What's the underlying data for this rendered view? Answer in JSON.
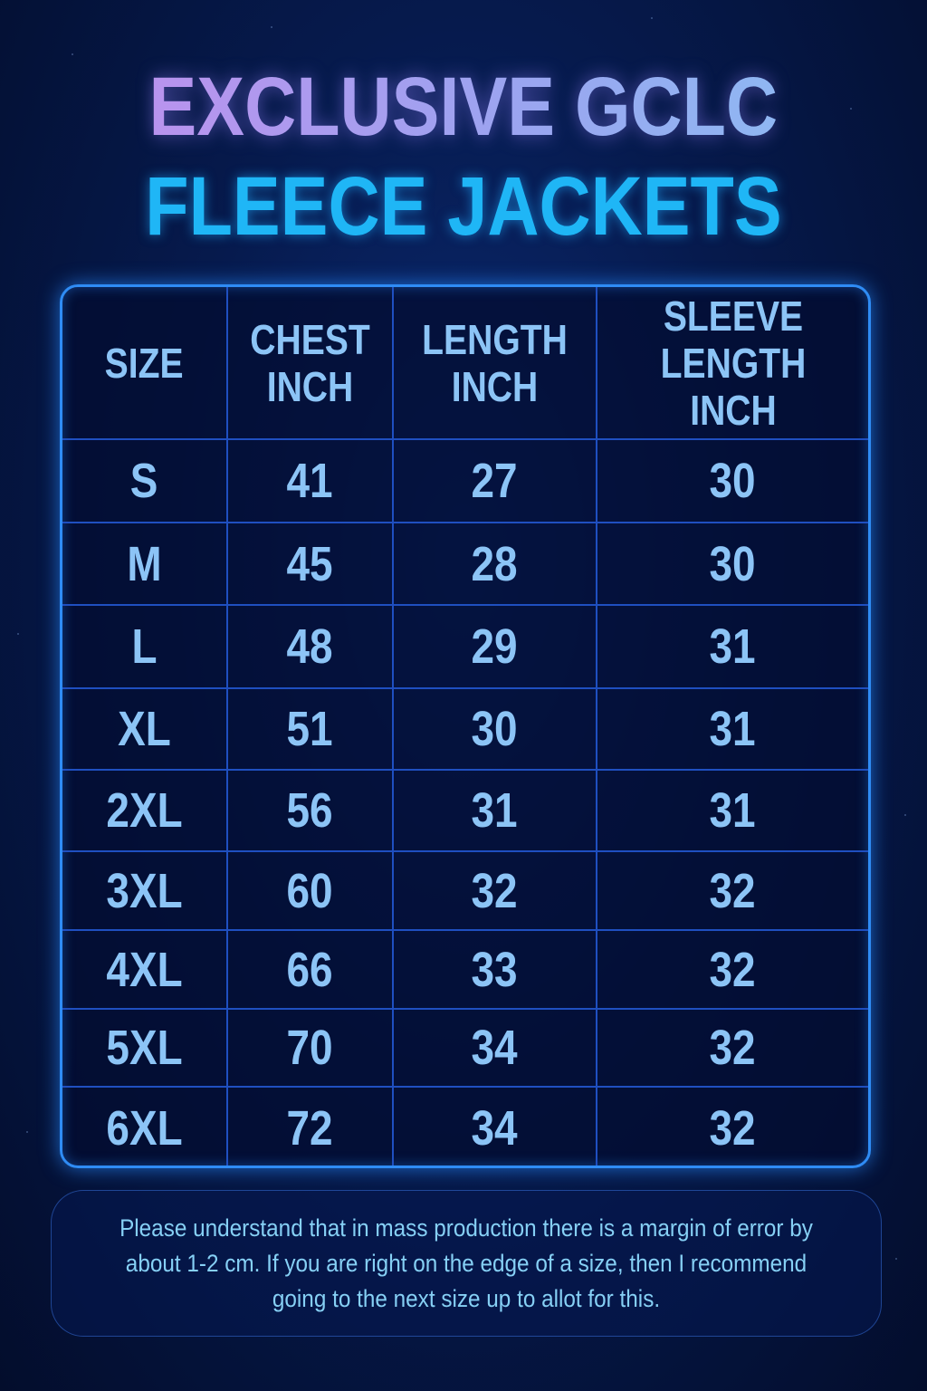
{
  "title": {
    "line1": "EXCLUSIVE GCLC",
    "line2": "FLEECE JACKETS"
  },
  "colors": {
    "title_line1": "#a99cf0",
    "title_line2": "#1fb6f6",
    "table_border": "#2f8cf5",
    "cell_text": "#8cc4f6",
    "background": "#061a4d"
  },
  "chart_data": {
    "type": "table",
    "columns": [
      "SIZE",
      "CHEST INCH",
      "LENGTH INCH",
      "SLEEVE LENGTH INCH"
    ],
    "rows": [
      [
        "S",
        "41",
        "27",
        "30"
      ],
      [
        "M",
        "45",
        "28",
        "30"
      ],
      [
        "L",
        "48",
        "29",
        "31"
      ],
      [
        "XL",
        "51",
        "30",
        "31"
      ],
      [
        "2XL",
        "56",
        "31",
        "31"
      ],
      [
        "3XL",
        "60",
        "32",
        "32"
      ],
      [
        "4XL",
        "66",
        "33",
        "32"
      ],
      [
        "5XL",
        "70",
        "34",
        "32"
      ],
      [
        "6XL",
        "72",
        "34",
        "32"
      ]
    ]
  },
  "note": "Please understand that in mass production there is a margin of error by about 1-2 cm. If you are right on the edge of a size, then I recommend going to the next size up to allot for this."
}
